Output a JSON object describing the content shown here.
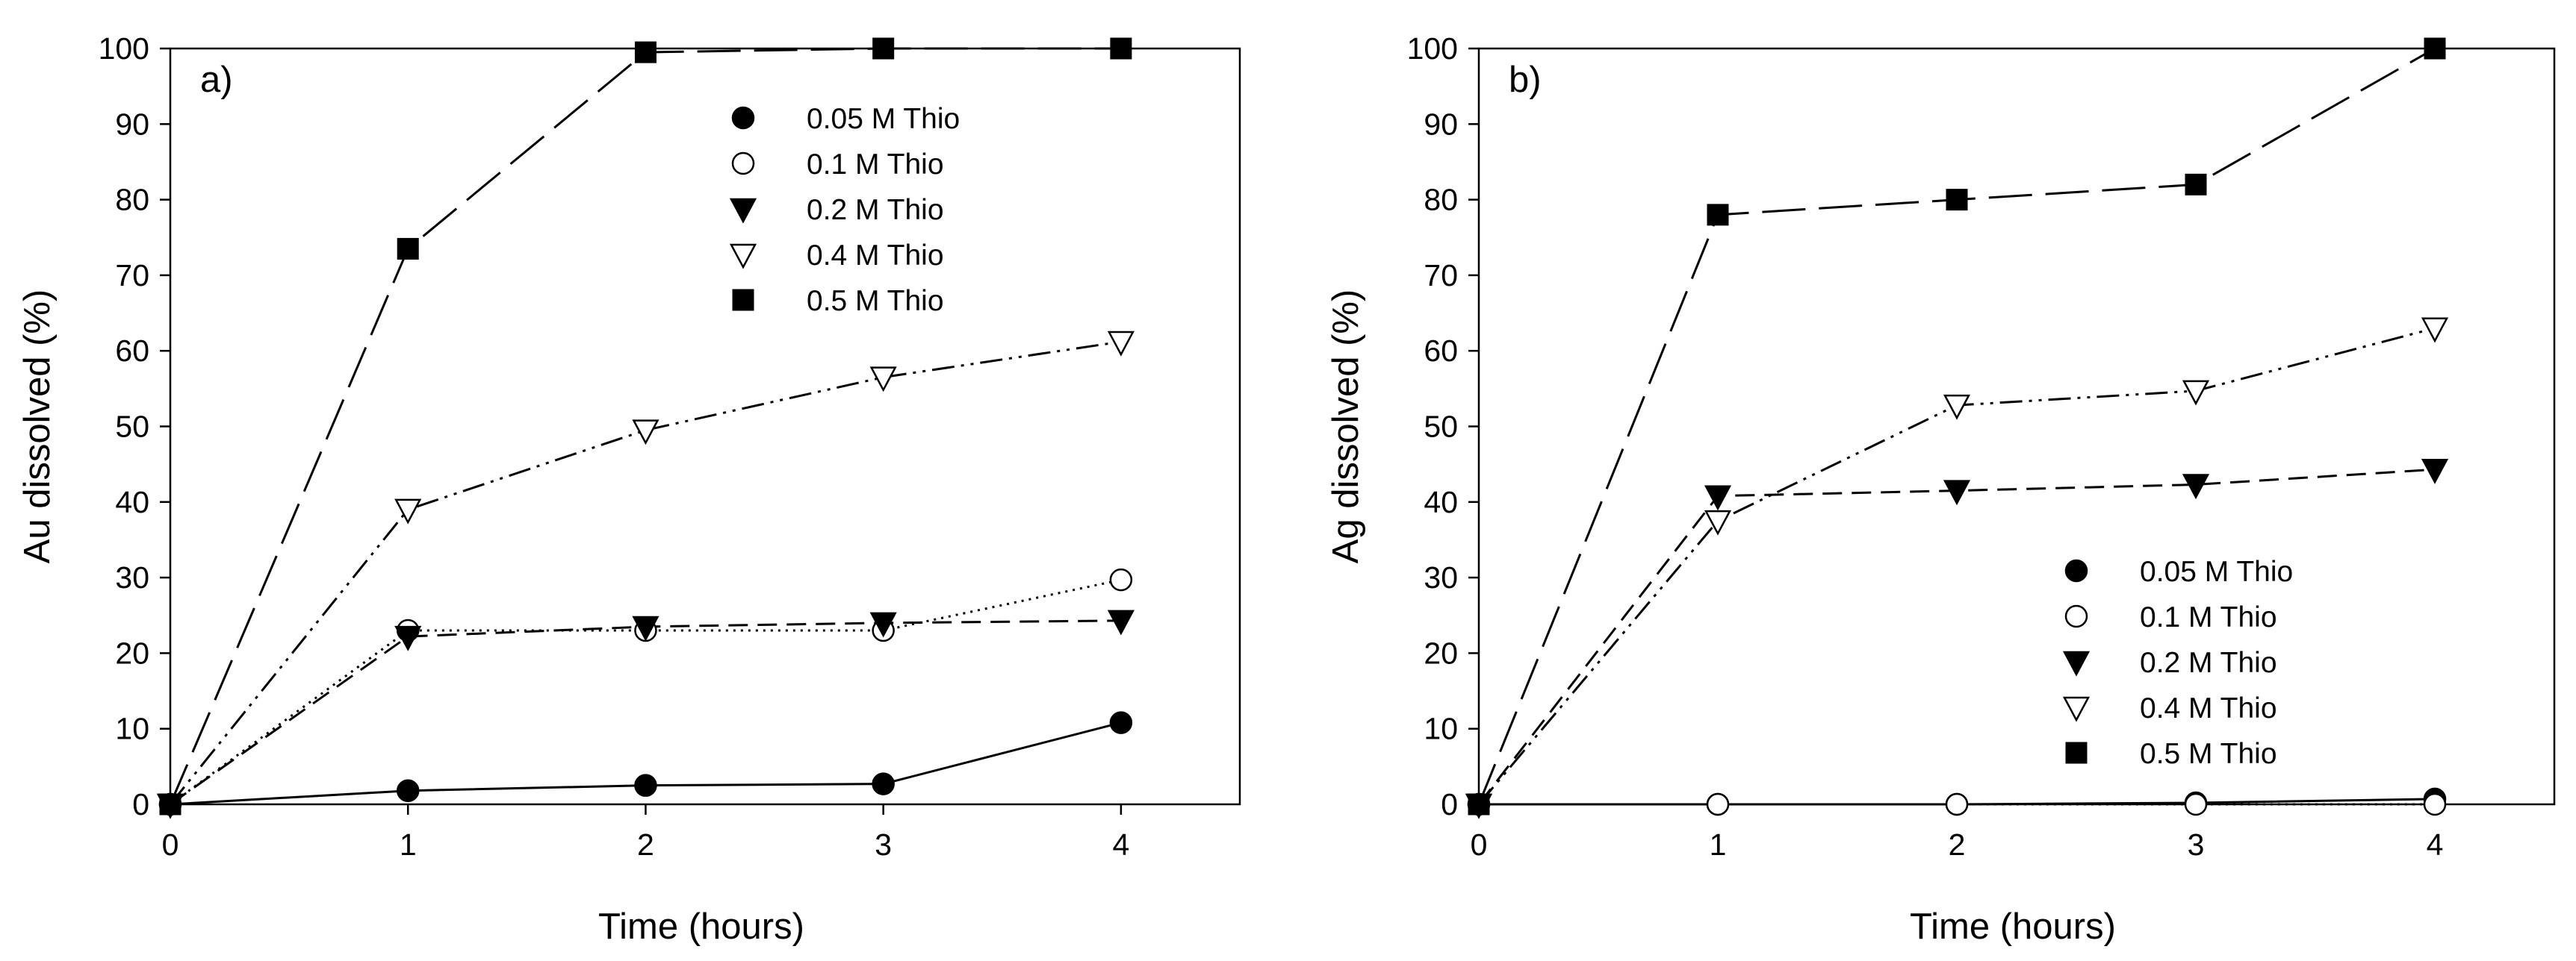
{
  "figure": {
    "background": "#ffffff",
    "ink": "#000000"
  },
  "chart_data": [
    {
      "type": "line",
      "panel_label": "a)",
      "xlabel": "Time (hours)",
      "ylabel": "Au dissolved (%)",
      "xlim": [
        0,
        4.5
      ],
      "ylim": [
        0,
        100
      ],
      "xticks": [
        0,
        1,
        2,
        3,
        4
      ],
      "yticks": [
        0,
        10,
        20,
        30,
        40,
        50,
        60,
        70,
        80,
        90,
        100
      ],
      "grid": false,
      "legend_position": "upper-center",
      "x": [
        0,
        1,
        2,
        3,
        4
      ],
      "series": [
        {
          "name": "0.05 M Thio",
          "marker": "filled-circle",
          "line": "solid",
          "values": [
            0,
            1.8,
            2.5,
            2.7,
            10.8
          ]
        },
        {
          "name": "0.1 M Thio",
          "marker": "open-circle",
          "line": "dotted",
          "values": [
            0,
            23,
            23,
            23,
            29.7
          ]
        },
        {
          "name": "0.2 M Thio",
          "marker": "filled-triangle-down",
          "line": "short-dash",
          "values": [
            0,
            22.2,
            23.5,
            24,
            24.3
          ]
        },
        {
          "name": "0.4 M Thio",
          "marker": "open-triangle-down",
          "line": "dash-dot-dot",
          "values": [
            0,
            39,
            49.5,
            56.5,
            61.2
          ]
        },
        {
          "name": "0.5 M Thio",
          "marker": "filled-square",
          "line": "long-dash",
          "values": [
            0,
            73.5,
            99.5,
            100,
            100
          ]
        }
      ]
    },
    {
      "type": "line",
      "panel_label": "b)",
      "xlabel": "Time (hours)",
      "ylabel": "Ag dissolved (%)",
      "xlim": [
        0,
        4.5
      ],
      "ylim": [
        0,
        100
      ],
      "xticks": [
        0,
        1,
        2,
        3,
        4
      ],
      "yticks": [
        0,
        10,
        20,
        30,
        40,
        50,
        60,
        70,
        80,
        90,
        100
      ],
      "grid": false,
      "legend_position": "lower-right",
      "x": [
        0,
        1,
        2,
        3,
        4
      ],
      "series": [
        {
          "name": "0.05 M Thio",
          "marker": "filled-circle",
          "line": "solid",
          "values": [
            0,
            0,
            0,
            0.2,
            0.7
          ]
        },
        {
          "name": "0.1 M Thio",
          "marker": "open-circle",
          "line": "dotted",
          "values": [
            0,
            0,
            0,
            0,
            0
          ]
        },
        {
          "name": "0.2 M Thio",
          "marker": "filled-triangle-down",
          "line": "short-dash",
          "values": [
            0,
            40.8,
            41.5,
            42.3,
            44.3
          ]
        },
        {
          "name": "0.4 M Thio",
          "marker": "open-triangle-down",
          "line": "dash-dot-dot",
          "values": [
            0,
            37.5,
            52.8,
            54.7,
            63
          ]
        },
        {
          "name": "0.5 M Thio",
          "marker": "filled-square",
          "line": "long-dash",
          "values": [
            0,
            78,
            80,
            82,
            100
          ]
        }
      ]
    }
  ]
}
